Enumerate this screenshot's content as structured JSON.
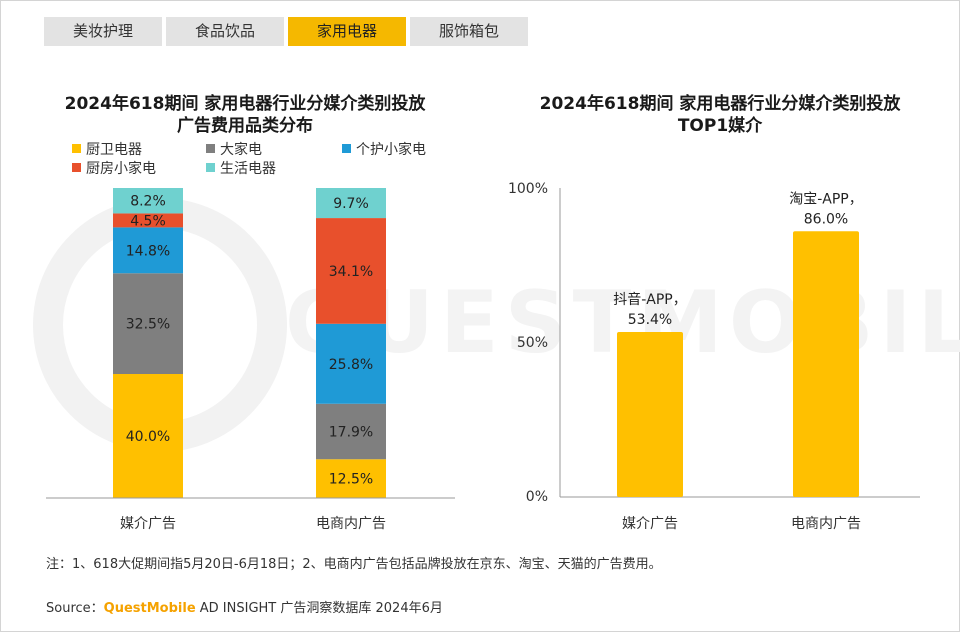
{
  "tabs": [
    {
      "label": "美妆护理",
      "active": false
    },
    {
      "label": "食品饮品",
      "active": false
    },
    {
      "label": "家用电器",
      "active": true
    },
    {
      "label": "服饰箱包",
      "active": false
    }
  ],
  "watermark": {
    "text": "QUESTMOBILE"
  },
  "chart_data": [
    {
      "type": "stacked-bar",
      "title_line1": "2024年618期间 家用电器行业分媒介类别投放",
      "title_line2": "广告费用品类分布",
      "categories": [
        "媒介广告",
        "电商内广告"
      ],
      "series": [
        {
          "name": "厨卫电器",
          "color": "#ffc000",
          "values": [
            40.0,
            12.5
          ]
        },
        {
          "name": "大家电",
          "color": "#7f7f7f",
          "values": [
            32.5,
            17.9
          ]
        },
        {
          "name": "个护小家电",
          "color": "#1f9ad6",
          "values": [
            14.8,
            25.8
          ]
        },
        {
          "name": "厨房小家电",
          "color": "#e8502c",
          "values": [
            4.5,
            34.1
          ]
        },
        {
          "name": "生活电器",
          "color": "#6fd1cf",
          "values": [
            8.2,
            9.7
          ]
        }
      ],
      "unit": "%",
      "ylim": [
        0,
        100
      ],
      "legend_position": "top"
    },
    {
      "type": "bar",
      "title_line1": "2024年618期间 家用电器行业分媒介类别投放",
      "title_line2": "TOP1媒介",
      "categories": [
        "媒介广告",
        "电商内广告"
      ],
      "values": [
        53.4,
        86.0
      ],
      "bar_labels": [
        "抖音-APP，",
        "淘宝-APP，"
      ],
      "value_labels": [
        "53.4%",
        "86.0%"
      ],
      "color": "#ffc000",
      "yticks": [
        "0%",
        "50%",
        "100%"
      ],
      "ylim": [
        0,
        100
      ]
    }
  ],
  "footer": {
    "note": "注：1、618大促期间指5月20日-6月18日；2、电商内广告包括品牌投放在京东、淘宝、天猫的广告费用。",
    "source_prefix": "Source：",
    "source_brand": "QuestMobile",
    "source_suffix": " AD INSIGHT 广告洞察数据库 2024年6月"
  }
}
